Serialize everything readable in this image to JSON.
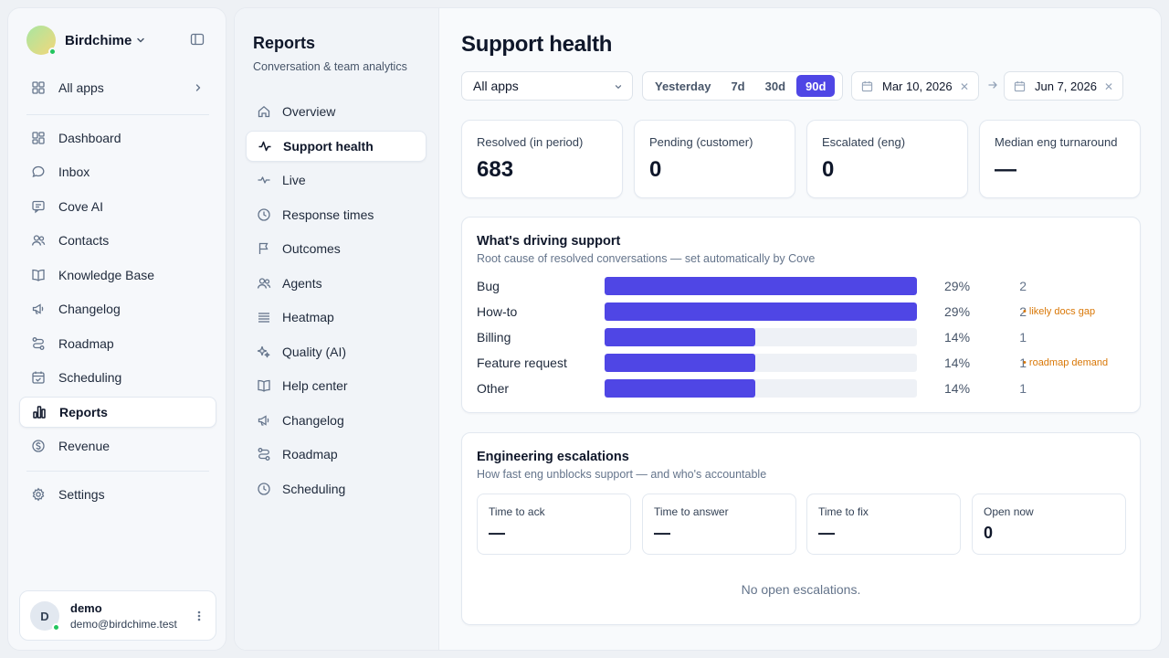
{
  "workspace": {
    "name": "Birdchime"
  },
  "sidebar": {
    "all_apps": "All apps",
    "items": [
      {
        "label": "Dashboard",
        "icon": "dashboard-icon"
      },
      {
        "label": "Inbox",
        "icon": "inbox-icon"
      },
      {
        "label": "Cove AI",
        "icon": "chat-ai-icon"
      },
      {
        "label": "Contacts",
        "icon": "contacts-icon"
      },
      {
        "label": "Knowledge Base",
        "icon": "book-icon"
      },
      {
        "label": "Changelog",
        "icon": "megaphone-icon"
      },
      {
        "label": "Roadmap",
        "icon": "roadmap-icon"
      },
      {
        "label": "Scheduling",
        "icon": "calendar-icon"
      },
      {
        "label": "Reports",
        "icon": "bar-chart-icon",
        "active": true
      },
      {
        "label": "Revenue",
        "icon": "dollar-icon"
      }
    ],
    "settings": "Settings"
  },
  "user": {
    "initial": "D",
    "name": "demo",
    "email": "demo@birdchime.test"
  },
  "reports_nav": {
    "title": "Reports",
    "subtitle": "Conversation & team analytics",
    "items": [
      {
        "label": "Overview",
        "icon": "home-icon"
      },
      {
        "label": "Support health",
        "icon": "pulse-icon",
        "active": true
      },
      {
        "label": "Live",
        "icon": "activity-icon"
      },
      {
        "label": "Response times",
        "icon": "clock-icon"
      },
      {
        "label": "Outcomes",
        "icon": "flag-icon"
      },
      {
        "label": "Agents",
        "icon": "agents-icon"
      },
      {
        "label": "Heatmap",
        "icon": "heatmap-icon"
      },
      {
        "label": "Quality (AI)",
        "icon": "sparkle-icon"
      },
      {
        "label": "Help center",
        "icon": "book-icon"
      },
      {
        "label": "Changelog",
        "icon": "megaphone-icon"
      },
      {
        "label": "Roadmap",
        "icon": "roadmap-icon"
      },
      {
        "label": "Scheduling",
        "icon": "clock-icon"
      }
    ]
  },
  "page": {
    "title": "Support health"
  },
  "filters": {
    "app_select": "All apps",
    "ranges": [
      {
        "label": "Yesterday"
      },
      {
        "label": "7d"
      },
      {
        "label": "30d"
      },
      {
        "label": "90d",
        "active": true
      }
    ],
    "date_from": "Mar 10, 2026",
    "date_to": "Jun 7, 2026"
  },
  "stats": [
    {
      "label": "Resolved (in period)",
      "value": "683"
    },
    {
      "label": "Pending (customer)",
      "value": "0"
    },
    {
      "label": "Escalated (eng)",
      "value": "0"
    },
    {
      "label": "Median eng turnaround",
      "value": "—"
    }
  ],
  "drivers": {
    "title": "What's driving support",
    "subtitle": "Root cause of resolved conversations — set automatically by Cove",
    "bar_color": "#4f46e5",
    "note_color": "#d97706",
    "rows": [
      {
        "label": "Bug",
        "share": 0.29,
        "pct": "29%",
        "count": "2",
        "note": ""
      },
      {
        "label": "How-to",
        "share": 0.29,
        "pct": "29%",
        "count": "2",
        "note": "• likely docs gap"
      },
      {
        "label": "Billing",
        "share": 0.14,
        "pct": "14%",
        "count": "1",
        "note": ""
      },
      {
        "label": "Feature request",
        "share": 0.14,
        "pct": "14%",
        "count": "1",
        "note": "• roadmap demand"
      },
      {
        "label": "Other",
        "share": 0.14,
        "pct": "14%",
        "count": "1",
        "note": ""
      }
    ]
  },
  "escalations": {
    "title": "Engineering escalations",
    "subtitle": "How fast eng unblocks support — and who's accountable",
    "metrics": [
      {
        "label": "Time to ack",
        "value": "—"
      },
      {
        "label": "Time to answer",
        "value": "—"
      },
      {
        "label": "Time to fix",
        "value": "—"
      },
      {
        "label": "Open now",
        "value": "0"
      }
    ],
    "empty": "No open escalations."
  },
  "colors": {
    "accent": "#4f46e5",
    "online": "#22c55e"
  }
}
